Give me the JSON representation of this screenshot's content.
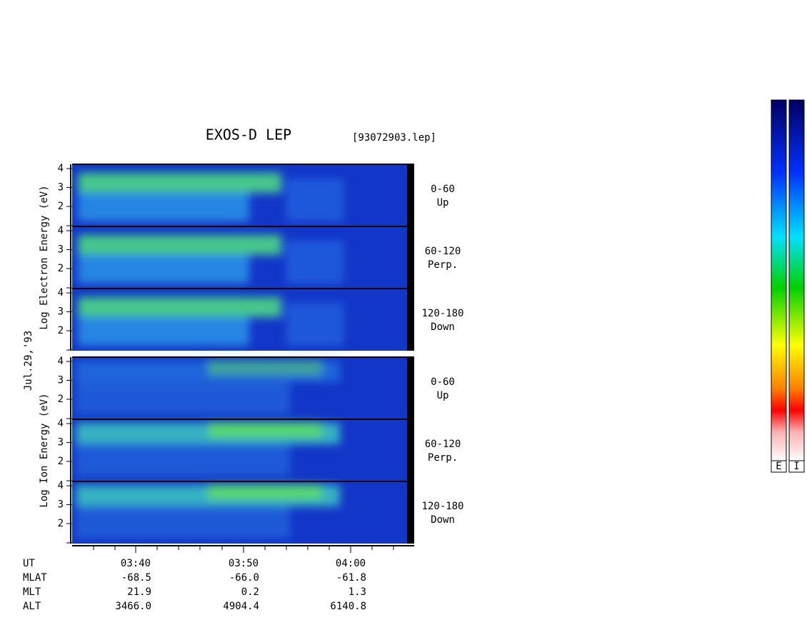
{
  "title": "EXOS-D LEP",
  "file": "[93072903.lep]",
  "date": "Jul.29,'93",
  "groups": [
    {
      "label": "Log  Electron  Energy (eV)",
      "panels": [
        {
          "angle": "0-60",
          "dir": "Up"
        },
        {
          "angle": "60-120",
          "dir": "Perp."
        },
        {
          "angle": "120-180",
          "dir": "Down"
        }
      ]
    },
    {
      "label": "Log  Ion  Energy (eV)",
      "panels": [
        {
          "angle": "0-60",
          "dir": "Up"
        },
        {
          "angle": "60-120",
          "dir": "Perp."
        },
        {
          "angle": "120-180",
          "dir": "Down"
        }
      ]
    }
  ],
  "yticks": [
    2,
    3,
    4
  ],
  "orbit": {
    "rows": [
      [
        "UT",
        "03:40",
        "03:50",
        "04:00"
      ],
      [
        "MLAT",
        "-68.5",
        "-66.0",
        "-61.8"
      ],
      [
        "MLT",
        "21.9",
        "0.2",
        "1.3"
      ],
      [
        "ALT",
        "3466.0",
        "4904.4",
        "6140.8"
      ]
    ]
  },
  "colorbars": [
    "E",
    "I"
  ]
}
